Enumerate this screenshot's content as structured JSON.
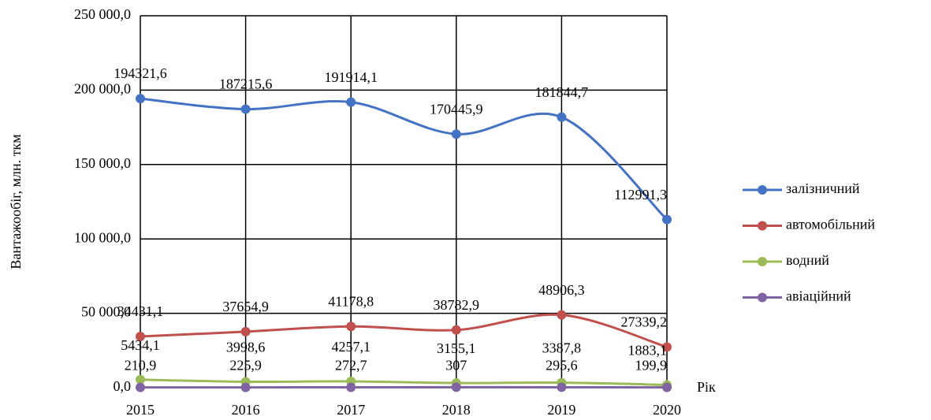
{
  "chart_data": {
    "type": "line",
    "y_label": "Вантажообіг, млн. ткм",
    "x_label": "Рік",
    "categories": [
      "2015",
      "2016",
      "2017",
      "2018",
      "2019",
      "2020"
    ],
    "ylim": [
      0,
      250000
    ],
    "yticks": [
      {
        "value": 0,
        "label": "0,0"
      },
      {
        "value": 50000,
        "label": "50 000,0"
      },
      {
        "value": 100000,
        "label": "100 000,0"
      },
      {
        "value": 150000,
        "label": "150 000,0"
      },
      {
        "value": 200000,
        "label": "200 000,0"
      },
      {
        "value": 250000,
        "label": "250 000,0"
      }
    ],
    "grid": true,
    "smooth": true,
    "legend": "right",
    "series": [
      {
        "name": "залізничний",
        "color": "#4472c4",
        "values": [
          194321.6,
          187215.6,
          191914.1,
          170445.9,
          181844.7,
          112991.3
        ],
        "value_labels": [
          "194321,6",
          "187215,6",
          "191914,1",
          "170445,9",
          "181844,7",
          "112991,3"
        ]
      },
      {
        "name": "автомобільний",
        "color": "#c0504d",
        "values": [
          34431.1,
          37654.9,
          41178.8,
          38782.9,
          48906.3,
          27339.2
        ],
        "value_labels": [
          "34431,1",
          "37654,9",
          "41178,8",
          "38782,9",
          "48906,3",
          "27339,2"
        ]
      },
      {
        "name": "водний",
        "color": "#9bbb59",
        "values": [
          5434.1,
          3998.6,
          4257.1,
          3155.1,
          3387.8,
          1883.1
        ],
        "value_labels": [
          "5434,1",
          "3998,6",
          "4257,1",
          "3155,1",
          "3387,8",
          "1883,1"
        ]
      },
      {
        "name": "авіаційний",
        "color": "#8064a2",
        "values": [
          210.9,
          225.9,
          272.7,
          307,
          295.6,
          199.9
        ],
        "value_labels": [
          "210,9",
          "225,9",
          "272,7",
          "307",
          "295,6",
          "199,9"
        ]
      }
    ]
  }
}
